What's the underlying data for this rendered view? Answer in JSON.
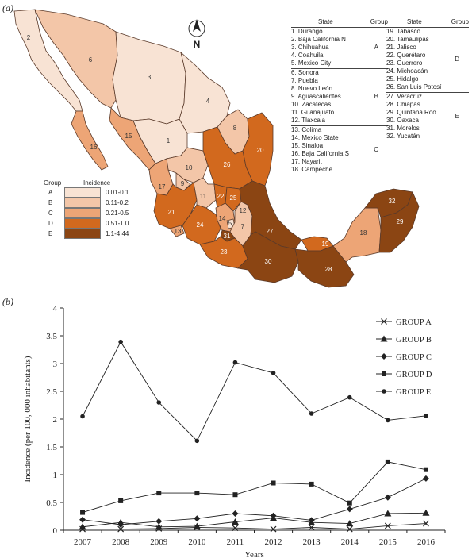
{
  "panel_a_label": "(a)",
  "panel_b_label": "(b)",
  "map": {
    "north_label": "N",
    "legend": {
      "group_header": "Group",
      "incidence_header": "Incidence",
      "rows": [
        {
          "group": "A",
          "range": "0.01-0.1",
          "color": "#f8e3d4"
        },
        {
          "group": "B",
          "range": "0.11-0.2",
          "color": "#f3c6a8"
        },
        {
          "group": "C",
          "range": "0.21-0.5",
          "color": "#eda576"
        },
        {
          "group": "D",
          "range": "0.51-1.0",
          "color": "#d2691e"
        },
        {
          "group": "E",
          "range": "1.1-4.44",
          "color": "#8b4513"
        }
      ]
    },
    "table_left": {
      "state_header": "State",
      "group_header": "Group",
      "sections": [
        {
          "group": "A",
          "states": [
            "1. Durango",
            "2. Baja California N",
            "3. Chihuahua",
            "4. Coahuila",
            "5. Mexico City"
          ]
        },
        {
          "group": "B",
          "states": [
            "6. Sonora",
            "7. Puebla",
            "8. Nuevo León",
            "9. Aguascalientes",
            "10. Zacatecas",
            "11. Guanajuato",
            "12. Tlaxcala"
          ]
        },
        {
          "group": "C",
          "states": [
            "13. Colima",
            "14. Mexico State",
            "15. Sinaloa",
            "16. Baja California S",
            "17. Nayarit",
            "18. Campeche"
          ]
        }
      ]
    },
    "table_right": {
      "state_header": "State",
      "group_header": "Group",
      "sections": [
        {
          "group": "D",
          "states": [
            "19. Tabasco",
            "20. Tamaulipas",
            "21. Jalisco",
            "22. Querétaro",
            "23. Guerrero",
            "24. Michoacán",
            "25. Hidalgo",
            "26. San Luis Potosí"
          ]
        },
        {
          "group": "E",
          "states": [
            "27. Veracruz",
            "28. Chiapas",
            "29. Quintana Roo",
            "30. Oaxaca",
            "31. Morelos",
            "32. Yucatán"
          ]
        }
      ]
    },
    "state_numbers": [
      "1",
      "2",
      "3",
      "4",
      "5",
      "6",
      "7",
      "8",
      "9",
      "10",
      "11",
      "12",
      "13",
      "14",
      "15",
      "16",
      "17",
      "18",
      "19",
      "20",
      "21",
      "22",
      "23",
      "24",
      "25",
      "26",
      "27",
      "28",
      "29",
      "30",
      "31",
      "32"
    ]
  },
  "chart_data": {
    "type": "line",
    "x": [
      2007,
      2008,
      2009,
      2010,
      2011,
      2012,
      2013,
      2014,
      2015,
      2016
    ],
    "xlabel": "Years",
    "ylabel": "Incidence (per 100,  000 inhabitants)",
    "ylim": [
      0,
      4
    ],
    "yticks": [
      "0",
      "0.5",
      "1",
      "1.5",
      "2",
      "2.5",
      "3",
      "3.5",
      "4"
    ],
    "grid": false,
    "legend_position": "top-right",
    "series": [
      {
        "name": "GROUP A",
        "marker": "x",
        "values": [
          0.02,
          0.02,
          0.03,
          0.05,
          0.04,
          0.02,
          0.05,
          0.02,
          0.08,
          0.12
        ]
      },
      {
        "name": "GROUP B",
        "marker": "triangle",
        "values": [
          0.06,
          0.14,
          0.06,
          0.07,
          0.15,
          0.22,
          0.14,
          0.12,
          0.3,
          0.31
        ]
      },
      {
        "name": "GROUP C",
        "marker": "diamond",
        "values": [
          0.19,
          0.1,
          0.16,
          0.21,
          0.3,
          0.26,
          0.18,
          0.38,
          0.59,
          0.93
        ]
      },
      {
        "name": "GROUP D",
        "marker": "square",
        "values": [
          0.32,
          0.53,
          0.67,
          0.67,
          0.64,
          0.85,
          0.83,
          0.49,
          1.23,
          1.09
        ]
      },
      {
        "name": "GROUP E",
        "marker": "circle",
        "values": [
          2.05,
          3.39,
          2.3,
          1.61,
          3.02,
          2.83,
          2.1,
          2.39,
          1.98,
          2.06
        ]
      }
    ]
  }
}
